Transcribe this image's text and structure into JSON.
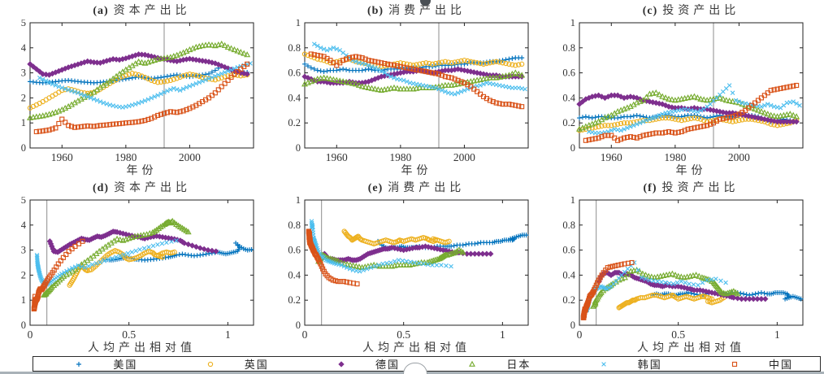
{
  "page": {
    "background": "#ffffff",
    "bottom_bar_color": "#a9b2b8",
    "axis_color": "#222222",
    "vline_color": "#8c8c8c"
  },
  "legend": {
    "items": [
      {
        "label": "美国",
        "marker": "plus",
        "color": "#0072BD"
      },
      {
        "label": "英国",
        "marker": "circle",
        "color": "#EDB120"
      },
      {
        "label": "德国",
        "marker": "diamond",
        "color": "#7E2F8E"
      },
      {
        "label": "日本",
        "marker": "triangle",
        "color": "#77AC30"
      },
      {
        "label": "韩国",
        "marker": "x",
        "color": "#4DBEEE"
      },
      {
        "label": "中国",
        "marker": "square",
        "color": "#D95319"
      }
    ]
  },
  "chart_data": [
    {
      "id": "a",
      "type": "scatter",
      "title_tag": "(a)",
      "title": "资本产出比",
      "xlabel": "年份",
      "x_source": "years",
      "y_source": "capital_output",
      "xlim": [
        1950,
        2020
      ],
      "xticks": [
        1960,
        1980,
        2000
      ],
      "ylim": [
        0,
        5
      ],
      "yticks": [
        0,
        1,
        2,
        3,
        4,
        5
      ],
      "vline_x": 1992,
      "grid": false
    },
    {
      "id": "b",
      "type": "scatter",
      "title_tag": "(b)",
      "title": "消费产出比",
      "xlabel": "年份",
      "x_source": "years",
      "y_source": "consumption_output",
      "xlim": [
        1950,
        2020
      ],
      "xticks": [
        1960,
        1980,
        2000
      ],
      "ylim": [
        0,
        1
      ],
      "yticks": [
        0,
        0.2,
        0.4,
        0.6,
        0.8,
        1
      ],
      "vline_x": 1992,
      "grid": false
    },
    {
      "id": "c",
      "type": "scatter",
      "title_tag": "(c)",
      "title": "投资产出比",
      "xlabel": "年份",
      "x_source": "years",
      "y_source": "investment_output",
      "xlim": [
        1950,
        2020
      ],
      "xticks": [
        1960,
        1980,
        2000
      ],
      "ylim": [
        0,
        1
      ],
      "yticks": [
        0,
        0.2,
        0.4,
        0.6,
        0.8,
        1
      ],
      "vline_x": 1992,
      "grid": false
    },
    {
      "id": "d",
      "type": "scatter",
      "title_tag": "(d)",
      "title": "资本产出比",
      "xlabel": "人均产出相对值",
      "x_source": "rel_output",
      "y_source": "capital_output",
      "xlim": [
        0,
        1.13
      ],
      "xticks": [
        0,
        0.5,
        1
      ],
      "ylim": [
        0,
        5
      ],
      "yticks": [
        0,
        1,
        2,
        3,
        4,
        5
      ],
      "vline_x": 0.085,
      "grid": false
    },
    {
      "id": "e",
      "type": "scatter",
      "title_tag": "(e)",
      "title": "消费产出比",
      "xlabel": "人均产出相对值",
      "x_source": "rel_output",
      "y_source": "consumption_output",
      "xlim": [
        0,
        1.13
      ],
      "xticks": [
        0,
        0.5,
        1
      ],
      "ylim": [
        0,
        1
      ],
      "yticks": [
        0,
        0.2,
        0.4,
        0.6,
        0.8,
        1
      ],
      "vline_x": 0.085,
      "grid": false
    },
    {
      "id": "f",
      "type": "scatter",
      "title_tag": "(f)",
      "title": "投资产出比",
      "xlabel": "人均产出相对值",
      "x_source": "rel_output",
      "y_source": "investment_output",
      "xlim": [
        0,
        1.13
      ],
      "xticks": [
        0,
        0.5,
        1
      ],
      "ylim": [
        0,
        1
      ],
      "yticks": [
        0,
        0.2,
        0.4,
        0.6,
        0.8,
        1
      ],
      "vline_x": 0.085,
      "grid": false
    }
  ],
  "series": [
    {
      "name": "美国",
      "marker": "plus",
      "color": "#0072BD",
      "years": [
        1950,
        1952,
        1954,
        1956,
        1958,
        1960,
        1962,
        1964,
        1966,
        1968,
        1970,
        1972,
        1974,
        1976,
        1978,
        1980,
        1982,
        1984,
        1986,
        1988,
        1990,
        1992,
        1994,
        1996,
        1998,
        2000,
        2002,
        2004,
        2006,
        2008,
        2010,
        2012,
        2014,
        2016,
        2018
      ],
      "rel_output": [
        0.37,
        0.39,
        0.41,
        0.43,
        0.45,
        0.47,
        0.49,
        0.51,
        0.53,
        0.55,
        0.58,
        0.61,
        0.64,
        0.67,
        0.7,
        0.72,
        0.74,
        0.77,
        0.8,
        0.83,
        0.86,
        0.89,
        0.92,
        0.95,
        0.97,
        0.99,
        1.01,
        1.03,
        1.05,
        1.06,
        1.04,
        1.06,
        1.08,
        1.1,
        1.12
      ],
      "capital_output": [
        2.65,
        2.62,
        2.6,
        2.62,
        2.65,
        2.68,
        2.7,
        2.67,
        2.64,
        2.62,
        2.6,
        2.62,
        2.65,
        2.68,
        2.72,
        2.76,
        2.8,
        2.84,
        2.8,
        2.77,
        2.8,
        2.84,
        2.88,
        2.92,
        2.88,
        2.85,
        2.88,
        2.92,
        2.96,
        3.1,
        3.28,
        3.15,
        3.05,
        3.0,
        3.02
      ],
      "consumption_output": [
        0.67,
        0.64,
        0.62,
        0.61,
        0.62,
        0.62,
        0.63,
        0.62,
        0.62,
        0.62,
        0.63,
        0.62,
        0.62,
        0.63,
        0.63,
        0.63,
        0.63,
        0.64,
        0.64,
        0.65,
        0.65,
        0.66,
        0.66,
        0.66,
        0.67,
        0.67,
        0.68,
        0.68,
        0.68,
        0.69,
        0.69,
        0.7,
        0.71,
        0.72,
        0.72
      ],
      "investment_output": [
        0.24,
        0.25,
        0.24,
        0.25,
        0.25,
        0.24,
        0.24,
        0.25,
        0.25,
        0.26,
        0.25,
        0.24,
        0.25,
        0.26,
        0.26,
        0.25,
        0.25,
        0.26,
        0.26,
        0.25,
        0.24,
        0.25,
        0.26,
        0.25,
        0.25,
        0.26,
        0.26,
        0.26,
        0.25,
        0.23,
        0.21,
        0.22,
        0.23,
        0.22,
        0.21
      ]
    },
    {
      "name": "英国",
      "marker": "circle",
      "color": "#EDB120",
      "years": [
        1950,
        1952,
        1954,
        1956,
        1958,
        1960,
        1962,
        1964,
        1966,
        1968,
        1970,
        1972,
        1974,
        1976,
        1978,
        1980,
        1982,
        1984,
        1986,
        1988,
        1990,
        1992,
        1994,
        1996,
        1998,
        2000,
        2002,
        2004,
        2006,
        2008,
        2010,
        2012,
        2014,
        2016,
        2018
      ],
      "rel_output": [
        0.2,
        0.21,
        0.22,
        0.23,
        0.24,
        0.25,
        0.26,
        0.27,
        0.28,
        0.29,
        0.31,
        0.33,
        0.35,
        0.37,
        0.39,
        0.41,
        0.43,
        0.45,
        0.47,
        0.48,
        0.5,
        0.52,
        0.54,
        0.56,
        0.58,
        0.6,
        0.62,
        0.63,
        0.65,
        0.67,
        0.65,
        0.67,
        0.69,
        0.71,
        0.73
      ],
      "capital_output": [
        1.6,
        1.72,
        1.85,
        2.0,
        2.15,
        2.3,
        2.36,
        2.3,
        2.22,
        2.18,
        2.22,
        2.35,
        2.5,
        2.65,
        2.8,
        2.9,
        2.98,
        2.92,
        2.82,
        2.7,
        2.62,
        2.65,
        2.7,
        2.78,
        2.88,
        2.95,
        2.9,
        2.82,
        2.76,
        2.72,
        2.8,
        2.88,
        2.92,
        2.88,
        2.92
      ],
      "consumption_output": [
        0.75,
        0.73,
        0.71,
        0.7,
        0.68,
        0.69,
        0.7,
        0.71,
        0.69,
        0.68,
        0.67,
        0.66,
        0.65,
        0.66,
        0.67,
        0.68,
        0.67,
        0.66,
        0.67,
        0.68,
        0.67,
        0.68,
        0.69,
        0.68,
        0.69,
        0.7,
        0.69,
        0.68,
        0.67,
        0.68,
        0.69,
        0.68,
        0.67,
        0.66,
        0.67
      ],
      "investment_output": [
        0.14,
        0.15,
        0.16,
        0.17,
        0.18,
        0.18,
        0.19,
        0.2,
        0.2,
        0.21,
        0.22,
        0.22,
        0.23,
        0.24,
        0.24,
        0.23,
        0.22,
        0.23,
        0.24,
        0.23,
        0.21,
        0.22,
        0.23,
        0.22,
        0.21,
        0.22,
        0.23,
        0.23,
        0.22,
        0.21,
        0.19,
        0.18,
        0.19,
        0.2,
        0.22
      ]
    },
    {
      "name": "德国",
      "marker": "diamond",
      "color": "#7E2F8E",
      "years": [
        1950,
        1952,
        1954,
        1956,
        1958,
        1960,
        1962,
        1964,
        1966,
        1968,
        1970,
        1972,
        1974,
        1976,
        1978,
        1980,
        1982,
        1984,
        1986,
        1988,
        1990,
        1992,
        1994,
        1996,
        1998,
        2000,
        2002,
        2004,
        2006,
        2008,
        2010,
        2012,
        2014,
        2016,
        2018
      ],
      "rel_output": [
        0.1,
        0.11,
        0.12,
        0.14,
        0.16,
        0.18,
        0.2,
        0.22,
        0.24,
        0.26,
        0.28,
        0.3,
        0.32,
        0.34,
        0.36,
        0.38,
        0.4,
        0.42,
        0.44,
        0.47,
        0.5,
        0.53,
        0.56,
        0.58,
        0.61,
        0.64,
        0.67,
        0.7,
        0.73,
        0.76,
        0.78,
        0.82,
        0.86,
        0.9,
        0.94
      ],
      "capital_output": [
        3.35,
        3.15,
        2.95,
        2.92,
        3.02,
        3.12,
        3.22,
        3.3,
        3.38,
        3.46,
        3.42,
        3.4,
        3.48,
        3.55,
        3.52,
        3.58,
        3.66,
        3.74,
        3.72,
        3.66,
        3.6,
        3.55,
        3.5,
        3.46,
        3.52,
        3.56,
        3.52,
        3.48,
        3.44,
        3.38,
        3.28,
        3.18,
        3.08,
        3.0,
        2.95
      ],
      "consumption_output": [
        0.57,
        0.55,
        0.53,
        0.53,
        0.52,
        0.52,
        0.52,
        0.53,
        0.52,
        0.52,
        0.53,
        0.55,
        0.57,
        0.58,
        0.59,
        0.6,
        0.61,
        0.61,
        0.62,
        0.61,
        0.6,
        0.61,
        0.62,
        0.62,
        0.63,
        0.62,
        0.61,
        0.6,
        0.59,
        0.58,
        0.58,
        0.57,
        0.57,
        0.57,
        0.57
      ],
      "investment_output": [
        0.35,
        0.39,
        0.41,
        0.42,
        0.4,
        0.42,
        0.42,
        0.4,
        0.41,
        0.4,
        0.38,
        0.37,
        0.36,
        0.35,
        0.33,
        0.32,
        0.32,
        0.31,
        0.32,
        0.31,
        0.31,
        0.3,
        0.29,
        0.28,
        0.28,
        0.27,
        0.26,
        0.25,
        0.24,
        0.23,
        0.22,
        0.21,
        0.21,
        0.21,
        0.21
      ]
    },
    {
      "name": "日本",
      "marker": "triangle",
      "color": "#77AC30",
      "years": [
        1950,
        1952,
        1954,
        1956,
        1958,
        1960,
        1962,
        1964,
        1966,
        1968,
        1970,
        1972,
        1974,
        1976,
        1978,
        1980,
        1982,
        1984,
        1986,
        1988,
        1990,
        1992,
        1994,
        1996,
        1998,
        2000,
        2002,
        2004,
        2006,
        2008,
        2010,
        2012,
        2014,
        2016,
        2018
      ],
      "rel_output": [
        0.07,
        0.08,
        0.08,
        0.09,
        0.1,
        0.11,
        0.13,
        0.15,
        0.17,
        0.2,
        0.23,
        0.26,
        0.29,
        0.32,
        0.35,
        0.38,
        0.41,
        0.44,
        0.47,
        0.5,
        0.53,
        0.56,
        0.59,
        0.62,
        0.64,
        0.66,
        0.68,
        0.69,
        0.7,
        0.71,
        0.72,
        0.74,
        0.76,
        0.78,
        0.8
      ],
      "capital_output": [
        1.2,
        1.24,
        1.28,
        1.34,
        1.42,
        1.52,
        1.65,
        1.8,
        1.95,
        2.08,
        2.22,
        2.42,
        2.58,
        2.76,
        2.95,
        3.12,
        3.28,
        3.44,
        3.38,
        3.46,
        3.54,
        3.58,
        3.62,
        3.7,
        3.8,
        3.92,
        4.02,
        4.08,
        4.12,
        4.08,
        4.15,
        4.02,
        3.92,
        3.82,
        3.72
      ],
      "consumption_output": [
        0.51,
        0.53,
        0.55,
        0.56,
        0.55,
        0.54,
        0.53,
        0.52,
        0.51,
        0.49,
        0.48,
        0.47,
        0.46,
        0.47,
        0.48,
        0.47,
        0.47,
        0.47,
        0.48,
        0.48,
        0.48,
        0.49,
        0.5,
        0.5,
        0.51,
        0.52,
        0.53,
        0.54,
        0.55,
        0.56,
        0.56,
        0.57,
        0.58,
        0.6,
        0.58
      ],
      "investment_output": [
        0.15,
        0.17,
        0.19,
        0.21,
        0.24,
        0.26,
        0.29,
        0.31,
        0.33,
        0.36,
        0.38,
        0.43,
        0.44,
        0.41,
        0.39,
        0.38,
        0.39,
        0.4,
        0.41,
        0.39,
        0.38,
        0.39,
        0.4,
        0.38,
        0.37,
        0.36,
        0.34,
        0.32,
        0.3,
        0.28,
        0.26,
        0.25,
        0.26,
        0.27,
        0.25
      ]
    },
    {
      "name": "韩国",
      "marker": "x",
      "color": "#4DBEEE",
      "years": [
        1953,
        1955,
        1957,
        1959,
        1961,
        1963,
        1965,
        1967,
        1969,
        1971,
        1973,
        1975,
        1977,
        1979,
        1981,
        1983,
        1985,
        1987,
        1989,
        1991,
        1993,
        1995,
        1997,
        1999,
        2001,
        2003,
        2005,
        2007,
        2009,
        2011,
        2013,
        2015,
        2017,
        2019
      ],
      "rel_output": [
        0.035,
        0.036,
        0.037,
        0.038,
        0.04,
        0.042,
        0.044,
        0.047,
        0.05,
        0.054,
        0.059,
        0.066,
        0.074,
        0.084,
        0.095,
        0.108,
        0.123,
        0.14,
        0.16,
        0.185,
        0.213,
        0.244,
        0.278,
        0.315,
        0.355,
        0.395,
        0.435,
        0.475,
        0.515,
        0.555,
        0.6,
        0.645,
        0.69,
        0.74
      ],
      "capital_output": [
        2.8,
        2.68,
        2.55,
        2.45,
        2.36,
        2.28,
        2.2,
        2.1,
        2.0,
        1.9,
        1.8,
        1.72,
        1.66,
        1.62,
        1.68,
        1.75,
        1.84,
        1.94,
        2.05,
        2.16,
        2.28,
        2.38,
        2.3,
        2.42,
        2.52,
        2.62,
        2.72,
        2.82,
        2.92,
        3.02,
        3.12,
        3.22,
        3.3,
        3.38
      ],
      "consumption_output": [
        0.83,
        0.8,
        0.78,
        0.8,
        0.78,
        0.74,
        0.7,
        0.68,
        0.67,
        0.65,
        0.63,
        0.6,
        0.57,
        0.55,
        0.54,
        0.52,
        0.51,
        0.5,
        0.49,
        0.48,
        0.46,
        0.44,
        0.43,
        0.45,
        0.47,
        0.49,
        0.5,
        0.52,
        0.51,
        0.5,
        0.49,
        0.48,
        0.48,
        0.47
      ],
      "investment_output": [
        0.13,
        0.12,
        0.12,
        0.13,
        0.15,
        0.14,
        0.16,
        0.18,
        0.2,
        0.22,
        0.24,
        0.26,
        0.28,
        0.29,
        0.3,
        0.31,
        0.3,
        0.29,
        0.31,
        0.35,
        0.4,
        0.45,
        0.5,
        0.38,
        0.36,
        0.35,
        0.34,
        0.33,
        0.35,
        0.33,
        0.32,
        0.36,
        0.37,
        0.34
      ]
    },
    {
      "name": "中国",
      "marker": "square",
      "color": "#D95319",
      "years": [
        1952,
        1954,
        1956,
        1958,
        1960,
        1962,
        1964,
        1966,
        1968,
        1970,
        1972,
        1974,
        1976,
        1978,
        1980,
        1982,
        1984,
        1986,
        1988,
        1990,
        1992,
        1994,
        1996,
        1998,
        2000,
        2002,
        2004,
        2006,
        2008,
        2010,
        2012,
        2014,
        2016,
        2018
      ],
      "rel_output": [
        0.02,
        0.021,
        0.022,
        0.024,
        0.025,
        0.022,
        0.023,
        0.024,
        0.024,
        0.025,
        0.026,
        0.027,
        0.027,
        0.028,
        0.03,
        0.032,
        0.035,
        0.038,
        0.041,
        0.043,
        0.047,
        0.052,
        0.058,
        0.064,
        0.071,
        0.08,
        0.091,
        0.105,
        0.122,
        0.143,
        0.168,
        0.196,
        0.228,
        0.265
      ],
      "capital_output": [
        0.65,
        0.68,
        0.72,
        0.8,
        1.15,
        0.9,
        0.82,
        0.85,
        0.88,
        0.86,
        0.9,
        0.92,
        0.95,
        0.97,
        1.0,
        1.02,
        1.05,
        1.1,
        1.18,
        1.3,
        1.38,
        1.45,
        1.42,
        1.48,
        1.58,
        1.7,
        1.85,
        2.0,
        2.2,
        2.45,
        2.7,
        2.95,
        3.15,
        3.35
      ],
      "consumption_output": [
        0.75,
        0.74,
        0.73,
        0.7,
        0.66,
        0.7,
        0.72,
        0.73,
        0.72,
        0.7,
        0.69,
        0.68,
        0.67,
        0.66,
        0.65,
        0.64,
        0.63,
        0.62,
        0.61,
        0.6,
        0.59,
        0.57,
        0.56,
        0.54,
        0.52,
        0.49,
        0.45,
        0.41,
        0.38,
        0.36,
        0.35,
        0.35,
        0.34,
        0.33
      ],
      "investment_output": [
        0.06,
        0.07,
        0.08,
        0.1,
        0.1,
        0.06,
        0.08,
        0.09,
        0.08,
        0.1,
        0.11,
        0.12,
        0.12,
        0.13,
        0.12,
        0.13,
        0.15,
        0.16,
        0.17,
        0.18,
        0.2,
        0.23,
        0.24,
        0.25,
        0.27,
        0.3,
        0.34,
        0.38,
        0.42,
        0.46,
        0.47,
        0.48,
        0.49,
        0.5
      ]
    }
  ]
}
